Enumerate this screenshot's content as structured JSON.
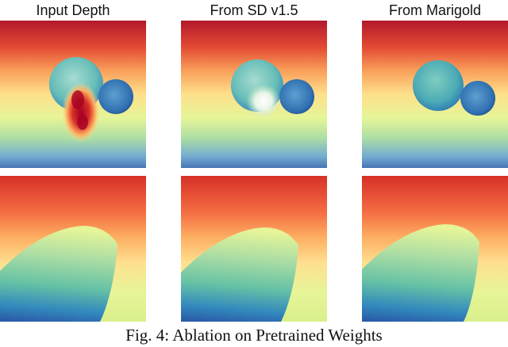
{
  "figure": {
    "column_titles": [
      "Input Depth",
      "From SD v1.5",
      "From Marigold"
    ],
    "caption": "Fig. 4: Ablation on Pretrained Weights",
    "colormap": [
      "#a50026",
      "#d73027",
      "#f46d43",
      "#fdae61",
      "#fee090",
      "#e0f3f8",
      "#abd9e9",
      "#74add1",
      "#4575b4",
      "#313695"
    ]
  },
  "panels": [
    {
      "row": 1,
      "col": 1,
      "variant": "scene1-input"
    },
    {
      "row": 1,
      "col": 2,
      "variant": "scene1-sd"
    },
    {
      "row": 1,
      "col": 3,
      "variant": "scene1-marigold"
    },
    {
      "row": 2,
      "col": 1,
      "variant": "scene2"
    },
    {
      "row": 2,
      "col": 2,
      "variant": "scene2"
    },
    {
      "row": 2,
      "col": 3,
      "variant": "scene2"
    }
  ]
}
